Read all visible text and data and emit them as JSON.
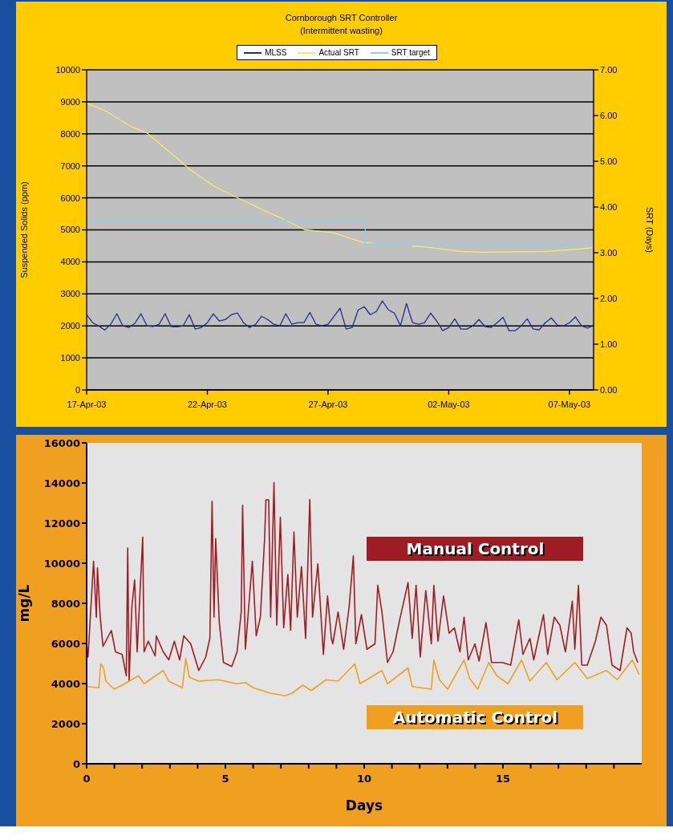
{
  "chart_data": [
    {
      "type": "line",
      "title": "Cornborough SRT Controller",
      "subtitle": "(Intermittent wasting)",
      "ylabel": "Suspended Solids (ppm)",
      "y2label": "SRT (Days)",
      "x": [
        "--04-17T00:00",
        "--04-17T06:00",
        "--04-17T12:00",
        "--04-17T18:00",
        "--04-18T00:00",
        "--04-18T06:00",
        "--04-18T12:00",
        "--04-18T18:00",
        "--04-19T00:00",
        "--04-19T06:00",
        "--04-19T12:00",
        "--04-19T18:00",
        "--04-20T00:00",
        "--04-20T06:00",
        "--04-20T12:00",
        "--04-20T18:00",
        "--04-21T00:00",
        "--04-21T06:00",
        "--04-21T12:00",
        "--04-21T18:00",
        "--04-22T00:00",
        "--04-22T06:00",
        "--04-22T12:00",
        "--04-22T18:00",
        "--04-23T00:00",
        "--04-23T06:00",
        "--04-23T12:00",
        "--04-23T18:00",
        "--04-24T00:00",
        "--04-24T06:00",
        "--04-24T12:00",
        "--04-24T18:00",
        "--04-25T00:00",
        "--04-25T06:00",
        "--04-25T12:00",
        "--04-25T18:00",
        "--04-26T00:00",
        "--04-26T06:00",
        "--04-26T12:00",
        "--04-26T18:00",
        "--04-27T00:00",
        "--04-27T06:00",
        "--04-27T12:00",
        "--04-27T18:00",
        "--04-28T00:00",
        "--04-28T06:00",
        "--04-28T12:00",
        "--04-28T18:00",
        "--04-29T00:00",
        "--04-29T06:00",
        "--04-29T12:00",
        "--04-29T18:00",
        "--04-30T00:00",
        "--04-30T06:00",
        "--04-30T12:00",
        "--04-30T18:00",
        "--05-01T00:00",
        "--05-01T06:00",
        "--05-01T12:00",
        "--05-01T18:00",
        "--05-02T00:00",
        "--05-02T06:00",
        "--05-02T12:00",
        "--05-02T18:00",
        "--05-03T00:00",
        "--05-03T06:00",
        "--05-03T12:00",
        "--05-03T18:00",
        "--05-04T00:00",
        "--05-04T06:00",
        "--05-04T12:00",
        "--05-04T18:00",
        "--05-05T00:00",
        "--05-05T06:00",
        "--05-05T12:00",
        "--05-05T18:00",
        "--05-06T00:00",
        "--05-06T06:00",
        "--05-06T12:00",
        "--05-06T18:00",
        "--05-07T00:00",
        "--05-07T06:00",
        "--05-07T12:00",
        "--05-07T18:00",
        "--05-07T23:00"
      ],
      "series": [
        {
          "name": "MLSS",
          "color": "#262b8c",
          "values": [
            2350,
            2100,
            2000,
            1870,
            2050,
            2380,
            2000,
            1950,
            2080,
            2380,
            2000,
            1980,
            2050,
            2380,
            1980,
            1970,
            2000,
            2350,
            1900,
            1950,
            2100,
            2380,
            2150,
            2200,
            2350,
            2400,
            2100,
            1950,
            2050,
            2300,
            2200,
            2050,
            2000,
            2380,
            2050,
            2100,
            2100,
            2420,
            2050,
            2000,
            2050,
            2300,
            2550,
            1900,
            1950,
            2500,
            2600,
            2350,
            2450,
            2780,
            2500,
            2400,
            2000,
            2700,
            2100,
            2050,
            2100,
            2400,
            2150,
            1850,
            1950,
            2220,
            1900,
            1900,
            2000,
            2200,
            1980,
            1950,
            2100,
            2270,
            1850,
            1850,
            2000,
            2220,
            1900,
            1880,
            2100,
            2250,
            2020,
            2000,
            2100,
            2280,
            2000,
            1930,
            2000
          ]
        },
        {
          "name": "Actual SRT",
          "color": "#f2ea6a",
          "axis": "y2",
          "x": [
            "--04-17T00:00",
            "--04-17T19:00",
            "--04-18T20:00",
            "--04-19T12:00",
            "--04-20T10:00",
            "--04-21T08:00",
            "--04-22T07:00",
            "--04-23T08:00",
            "--04-24T10:00",
            "--04-25T06:00",
            "--04-26T01:00",
            "--04-27T05:00",
            "--04-28T10:00",
            "--04-28T20:00",
            "--04-29T12:00",
            "--04-30T11:00",
            "--05-01T07:00",
            "--05-02T11:00",
            "--05-03T10:00",
            "--05-06T00:00",
            "--05-07T04:00",
            "--05-07T23:00"
          ],
          "values": [
            6.27,
            6.1,
            5.76,
            5.62,
            5.21,
            4.8,
            4.45,
            4.18,
            3.91,
            3.71,
            3.5,
            3.44,
            3.23,
            3.21,
            null,
            3.15,
            3.11,
            3.03,
            3.01,
            3.03,
            3.07,
            3.11
          ]
        },
        {
          "name": "SRT target",
          "color": "#88d4e4",
          "axis": "y2",
          "type": "step",
          "x": [
            "--04-17T00:00",
            "--04-28T13:00",
            "--05-07T23:00"
          ],
          "values": [
            3.71,
            3.19,
            3.19
          ]
        }
      ],
      "xlim": [
        "--04-17",
        "--05-08"
      ],
      "xticks": [
        {
          "value": "--04-17",
          "label": "17-Apr-03"
        },
        {
          "value": "--04-22",
          "label": "22-Apr-03"
        },
        {
          "value": "--04-27",
          "label": "27-Apr-03"
        },
        {
          "value": "--05-02",
          "label": "02-May-03"
        },
        {
          "value": "--05-07",
          "label": "07-May-03"
        }
      ],
      "ylim": [
        0,
        10000
      ],
      "yticks": [
        0,
        1000,
        2000,
        3000,
        4000,
        5000,
        6000,
        7000,
        8000,
        9000,
        10000
      ],
      "y2lim": [
        0,
        7
      ],
      "y2ticks": [
        {
          "value": 0,
          "label": "0.00"
        },
        {
          "value": 1,
          "label": "1.00"
        },
        {
          "value": 2,
          "label": "2.00"
        },
        {
          "value": 3,
          "label": "3.00"
        },
        {
          "value": 4,
          "label": "4.00"
        },
        {
          "value": 5,
          "label": "5.00"
        },
        {
          "value": 6,
          "label": "6.00"
        },
        {
          "value": 7,
          "label": "7.00"
        }
      ],
      "grid": "y",
      "legend": "top",
      "marker": "none",
      "line_style": "solid"
    },
    {
      "type": "line",
      "xlabel": "Days",
      "ylabel": "mg/L",
      "series": [
        {
          "name": "Manual Control",
          "color": "#a01c24",
          "x": [
            0,
            0.05,
            0.25,
            0.35,
            0.39,
            0.49,
            0.59,
            0.89,
            1.04,
            1.28,
            1.43,
            1.48,
            1.53,
            1.63,
            1.73,
            1.82,
            2.02,
            2.07,
            2.22,
            2.47,
            2.51,
            2.76,
            2.96,
            3.16,
            3.35,
            3.5,
            3.75,
            4.04,
            4.29,
            4.44,
            4.52,
            4.59,
            4.65,
            4.78,
            4.93,
            5.23,
            5.42,
            5.57,
            5.62,
            5.72,
            5.97,
            6.11,
            6.26,
            6.41,
            6.46,
            6.56,
            6.63,
            6.75,
            6.85,
            6.98,
            7.1,
            7.25,
            7.35,
            7.47,
            7.59,
            7.74,
            7.89,
            8.04,
            8.14,
            8.33,
            8.53,
            8.68,
            8.82,
            8.87,
            9.06,
            9.26,
            9.46,
            9.61,
            9.7,
            9.9,
            10.1,
            10.39,
            10.49,
            10.64,
            10.84,
            11.04,
            11.28,
            11.58,
            11.73,
            11.87,
            12.02,
            12.22,
            12.42,
            12.51,
            12.66,
            12.86,
            13.06,
            13.25,
            13.45,
            13.6,
            13.75,
            13.99,
            14.14,
            14.39,
            14.59,
            14.98,
            15.28,
            15.57,
            15.72,
            15.97,
            16.11,
            16.46,
            16.61,
            16.85,
            17.05,
            17.25,
            17.5,
            17.59,
            17.72,
            17.84,
            18.04,
            18.33,
            18.53,
            18.73,
            18.93,
            19.22,
            19.47,
            19.62,
            19.71,
            19.86
          ],
          "values": [
            5980,
            5320,
            10100,
            7300,
            9770,
            7300,
            5850,
            6650,
            5580,
            5450,
            4390,
            10760,
            4120,
            7840,
            9170,
            5580,
            11300,
            5580,
            6110,
            5380,
            6380,
            5580,
            5180,
            6110,
            5180,
            6380,
            5980,
            4650,
            5320,
            6250,
            13090,
            7310,
            11230,
            7040,
            5050,
            4850,
            5580,
            7570,
            12890,
            5710,
            10100,
            6380,
            7310,
            11160,
            13160,
            13160,
            7310,
            14020,
            6910,
            12290,
            6780,
            9440,
            6650,
            11560,
            7310,
            9830,
            6250,
            13180,
            7310,
            9970,
            5450,
            8370,
            6250,
            5980,
            7570,
            5710,
            7840,
            10370,
            5980,
            7440,
            5710,
            5980,
            8900,
            7570,
            5050,
            5580,
            7180,
            9040,
            6250,
            8900,
            5320,
            8640,
            5980,
            8900,
            6110,
            8370,
            6510,
            6780,
            5580,
            7310,
            5180,
            5980,
            5120,
            7040,
            5050,
            5050,
            4920,
            7180,
            5450,
            6250,
            5180,
            7440,
            5450,
            7310,
            6910,
            5580,
            8110,
            5710,
            8900,
            4920,
            4920,
            6110,
            7310,
            6910,
            4920,
            4650,
            6780,
            6510,
            5580,
            5050
          ]
        },
        {
          "name": "Automatic Control",
          "color": "#f0a020",
          "x": [
            0,
            0.44,
            0.51,
            0.61,
            0.69,
            0.99,
            1.28,
            1.87,
            2.07,
            2.76,
            2.96,
            3.45,
            3.57,
            3.7,
            4.04,
            4.73,
            5.42,
            5.72,
            6.01,
            6.61,
            7.15,
            7.4,
            7.79,
            8.09,
            8.63,
            9.06,
            9.66,
            9.85,
            10.64,
            10.84,
            11.58,
            11.73,
            12.42,
            12.51,
            12.71,
            13.01,
            13.6,
            13.8,
            14.09,
            14.49,
            14.78,
            15.18,
            15.67,
            15.97,
            16.56,
            16.95,
            17.59,
            18.04,
            18.73,
            19.12,
            19.66,
            19.91
          ],
          "values": [
            3850,
            3790,
            4980,
            4780,
            4120,
            3720,
            3920,
            4390,
            3990,
            4650,
            4120,
            3790,
            5250,
            4320,
            4120,
            4190,
            3990,
            4050,
            3790,
            3520,
            3390,
            3520,
            3920,
            3650,
            4190,
            4120,
            4980,
            3990,
            4650,
            3990,
            4780,
            3850,
            3720,
            5180,
            4190,
            3720,
            5180,
            4250,
            3720,
            5050,
            4390,
            3990,
            5180,
            4120,
            5050,
            4190,
            5050,
            4250,
            4650,
            4190,
            5180,
            4450
          ]
        }
      ],
      "xlim": [
        0,
        20
      ],
      "xticks": [
        0,
        {
          "value": 1,
          "label": null
        },
        {
          "value": 2,
          "label": null
        },
        {
          "value": 3,
          "label": null
        },
        {
          "value": 4,
          "label": null
        },
        5,
        {
          "value": 6,
          "label": null
        },
        {
          "value": 7,
          "label": null
        },
        {
          "value": 8,
          "label": null
        },
        {
          "value": 9,
          "label": null
        },
        10,
        {
          "value": 11,
          "label": null
        },
        {
          "value": 12,
          "label": null
        },
        {
          "value": 13,
          "label": null
        },
        {
          "value": 14,
          "label": null
        },
        15,
        {
          "value": 16,
          "label": null
        },
        {
          "value": 17,
          "label": null
        },
        {
          "value": 18,
          "label": null
        },
        {
          "value": 19,
          "label": null
        }
      ],
      "ylim": [
        0,
        16000
      ],
      "yticks": [
        0,
        2000,
        4000,
        6000,
        8000,
        10000,
        12000,
        14000,
        16000
      ],
      "grid": false,
      "legend": false,
      "marker": "none",
      "line_style": "solid"
    }
  ]
}
